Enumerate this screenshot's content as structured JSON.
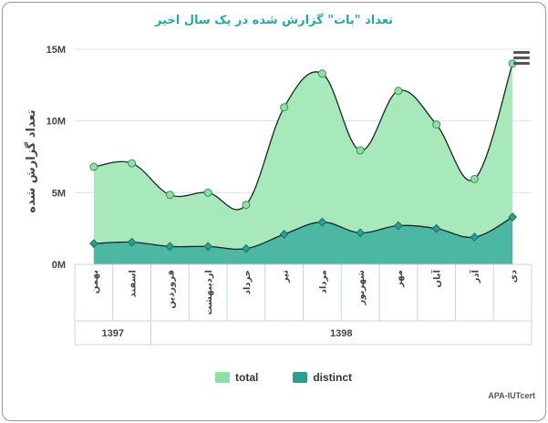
{
  "chart_data": {
    "type": "area",
    "title": "تعداد \"بات\" گزارش شده در یک سال اخیر",
    "ylabel": "تعداد گزارش شده",
    "ylim": [
      0,
      15000000
    ],
    "yticks": [
      0,
      5000000,
      10000000,
      15000000
    ],
    "ytick_labels": [
      "0M",
      "5M",
      "10M",
      "15M"
    ],
    "categories": [
      "بهمن",
      "اسفند",
      "فروردین",
      "اردیبهشت",
      "خرداد",
      "تیر",
      "مرداد",
      "شهریور",
      "مهر",
      "آبان",
      "آذر",
      "دی"
    ],
    "groups": [
      {
        "label": "1397",
        "count": 2
      },
      {
        "label": "1398",
        "count": 10
      }
    ],
    "series": [
      {
        "name": "total",
        "color": "#8ee0a9",
        "values": [
          6800000,
          7050000,
          4850000,
          5000000,
          4150000,
          10950000,
          13300000,
          7950000,
          12100000,
          9750000,
          5950000,
          14000000
        ]
      },
      {
        "name": "distinct",
        "color": "#2e9e91",
        "values": [
          1450000,
          1550000,
          1250000,
          1250000,
          1100000,
          2100000,
          2950000,
          2200000,
          2700000,
          2500000,
          1900000,
          3300000
        ]
      }
    ],
    "legend_position": "bottom",
    "grid": true
  },
  "credit": "APA-IUTcert"
}
